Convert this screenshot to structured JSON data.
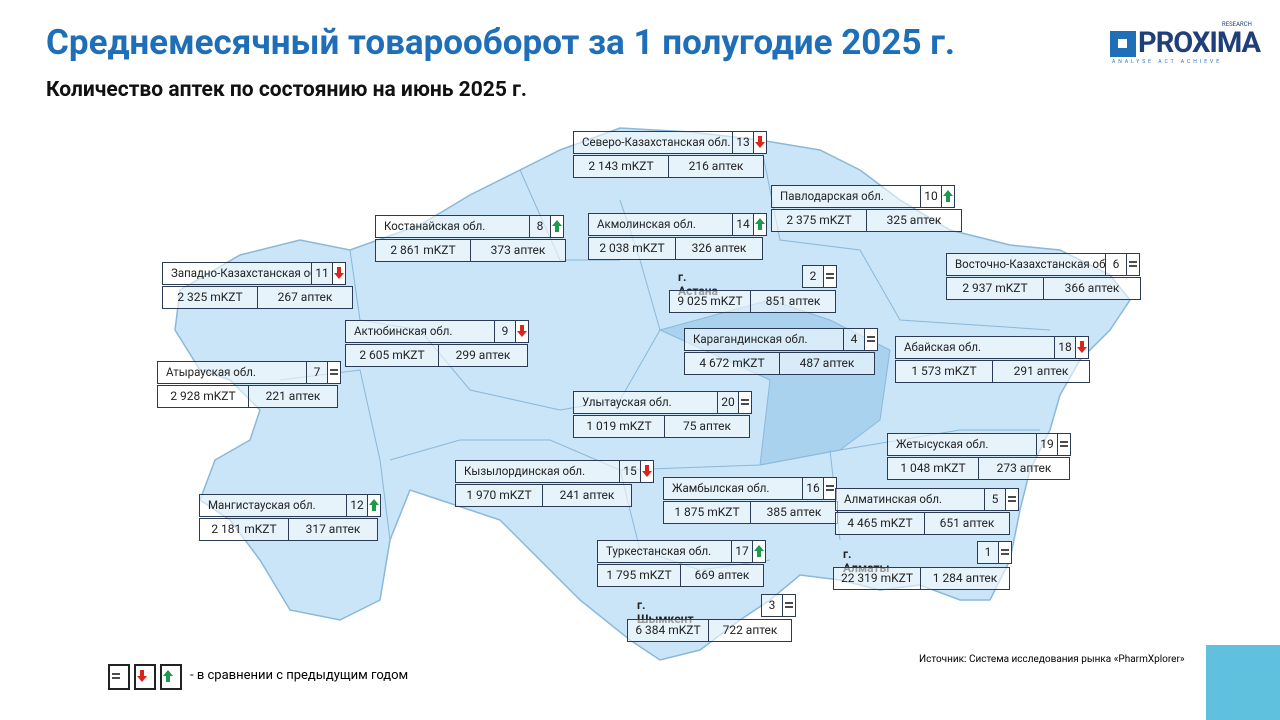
{
  "header": {
    "title": "Среднемесячный товарооборот за 1 полугодие 2025 г.",
    "subtitle": "Количество аптек по состоянию на июнь 2025 г."
  },
  "logo": {
    "name": "PROXIMA",
    "top": "RESEARCH",
    "tagline": "ANALYSE ACT ACHIEVE"
  },
  "regions": [
    {
      "name": "Северо-Казахстанская обл.",
      "rank": 13,
      "trend": "down",
      "turnover": "2 143 mKZT",
      "pharmacies": "216 аптек"
    },
    {
      "name": "Павлодарская обл.",
      "rank": 10,
      "trend": "up",
      "turnover": "2 375 mKZT",
      "pharmacies": "325 аптек"
    },
    {
      "name": "Костанайская обл.",
      "rank": 8,
      "trend": "up",
      "turnover": "2 861 mKZT",
      "pharmacies": "373 аптек"
    },
    {
      "name": "Акмолинская обл.",
      "rank": 14,
      "trend": "up",
      "turnover": "2 038 mKZT",
      "pharmacies": "326 аптек"
    },
    {
      "name": "Западно-Казахстанская обл.",
      "rank": 11,
      "trend": "down",
      "turnover": "2 325 mKZT",
      "pharmacies": "267 аптек"
    },
    {
      "name": "г. Астана",
      "rank": 2,
      "trend": "eq",
      "turnover": "9 025 mKZT",
      "pharmacies": "851 аптек"
    },
    {
      "name": "Восточно-Казахстанская обл.",
      "rank": 6,
      "trend": "eq",
      "turnover": "2 937 mKZT",
      "pharmacies": "366 аптек"
    },
    {
      "name": "Актюбинская обл.",
      "rank": 9,
      "trend": "down",
      "turnover": "2 605 mKZT",
      "pharmacies": "299 аптек"
    },
    {
      "name": "Карагандинская обл.",
      "rank": 4,
      "trend": "eq",
      "turnover": "4 672 mKZT",
      "pharmacies": "487 аптек"
    },
    {
      "name": "Абайская обл.",
      "rank": 18,
      "trend": "down",
      "turnover": "1 573 mKZT",
      "pharmacies": "291 аптек"
    },
    {
      "name": "Атырауская обл.",
      "rank": 7,
      "trend": "eq",
      "turnover": "2 928 mKZT",
      "pharmacies": "221 аптек"
    },
    {
      "name": "Улытауская обл.",
      "rank": 20,
      "trend": "eq",
      "turnover": "1 019 mKZT",
      "pharmacies": "75 аптек"
    },
    {
      "name": "Жетысуская обл.",
      "rank": 19,
      "trend": "eq",
      "turnover": "1 048 mKZT",
      "pharmacies": "273 аптек"
    },
    {
      "name": "Кызылординская обл.",
      "rank": 15,
      "trend": "down",
      "turnover": "1 970 mKZT",
      "pharmacies": "241 аптек"
    },
    {
      "name": "Мангистауская обл.",
      "rank": 12,
      "trend": "up",
      "turnover": "2 181 mKZT",
      "pharmacies": "317 аптек"
    },
    {
      "name": "Жамбылская обл.",
      "rank": 16,
      "trend": "eq",
      "turnover": "1 875 mKZT",
      "pharmacies": "385 аптек"
    },
    {
      "name": "Алматинская обл.",
      "rank": 5,
      "trend": "eq",
      "turnover": "4 465 mKZT",
      "pharmacies": "651 аптек"
    },
    {
      "name": "г. Алматы",
      "rank": 1,
      "trend": "eq",
      "turnover": "22 319 mKZT",
      "pharmacies": "1 284 аптек"
    },
    {
      "name": "Туркестанская обл.",
      "rank": 17,
      "trend": "up",
      "turnover": "1 795 mKZT",
      "pharmacies": "669 аптек"
    },
    {
      "name": "г. Шымкент",
      "rank": 3,
      "trend": "eq",
      "turnover": "6 384 mKZT",
      "pharmacies": "722 аптек"
    }
  ],
  "legend": {
    "text": "- в сравнении с предыдущим годом"
  },
  "source": "Источник: Система исследования рынка «PharmXplorer»"
}
